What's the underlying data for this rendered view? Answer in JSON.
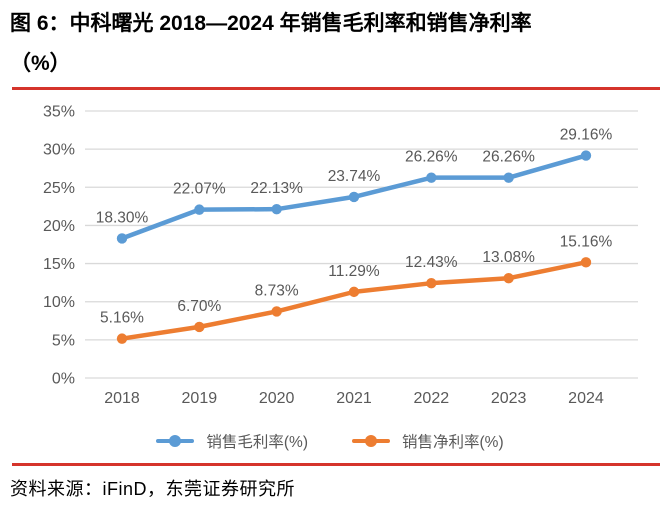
{
  "header": {
    "title_line1": "图 6：中科曙光 2018—2024 年销售毛利率和销售净利率",
    "title_line2": "（%）"
  },
  "footer": {
    "source": "资料来源：iFinD，东莞证券研究所"
  },
  "colors": {
    "accent_rule": "#d5342b",
    "gridline": "#d9d9d9",
    "axis_text": "#595959",
    "label_text": "#595959",
    "series_gross": "#5b9bd5",
    "series_net": "#ed7d31"
  },
  "chart_data": {
    "type": "line",
    "title": "中科曙光 2018—2024 年销售毛利率和销售净利率（%）",
    "categories": [
      "2018",
      "2019",
      "2020",
      "2021",
      "2022",
      "2023",
      "2024"
    ],
    "series": [
      {
        "name": "销售毛利率(%)",
        "color": "#5b9bd5",
        "values": [
          18.3,
          22.07,
          22.13,
          23.74,
          26.26,
          26.26,
          29.16
        ],
        "labels": [
          "18.30%",
          "22.07%",
          "22.13%",
          "23.74%",
          "26.26%",
          "26.26%",
          "29.16%"
        ]
      },
      {
        "name": "销售净利率(%)",
        "color": "#ed7d31",
        "values": [
          5.16,
          6.7,
          8.73,
          11.29,
          12.43,
          13.08,
          15.16
        ],
        "labels": [
          "5.16%",
          "6.70%",
          "8.73%",
          "11.29%",
          "12.43%",
          "13.08%",
          "15.16%"
        ]
      }
    ],
    "y_axis": {
      "min": 0,
      "max": 35,
      "tick_step": 5,
      "tick_labels": [
        "0%",
        "5%",
        "10%",
        "15%",
        "20%",
        "25%",
        "30%",
        "35%"
      ]
    },
    "grid": true,
    "legend_position": "bottom"
  }
}
